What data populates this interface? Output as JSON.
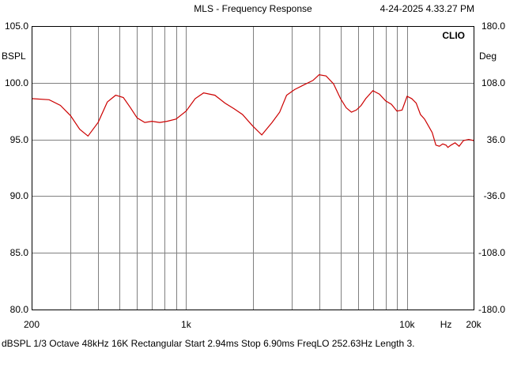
{
  "header": {
    "title": "MLS - Frequency Response",
    "timestamp": "4-24-2025 4.33.27 PM"
  },
  "footer": {
    "settings": "dBSPL   1/3 Octave   48kHz   16K   Rectangular   Start 2.94ms   Stop 6.90ms   FreqLO 252.63Hz   Length 3."
  },
  "chart_data": {
    "type": "line",
    "title": "MLS - Frequency Response",
    "watermark": "CLIO",
    "xlabel": "Hz",
    "x_scale": "log",
    "xlim": [
      200,
      20000
    ],
    "ylabel": "BSPL",
    "ylim": [
      80,
      105
    ],
    "y2label": "Deg",
    "y2lim": [
      -180,
      180
    ],
    "grid": true,
    "line_color": "#cc0000",
    "x_tick_labels": [
      {
        "value": 200,
        "label": "200"
      },
      {
        "value": 1000,
        "label": "1k"
      },
      {
        "value": 10000,
        "label": "10k"
      },
      {
        "value": 15000,
        "label": "Hz"
      },
      {
        "value": 20000,
        "label": "20k"
      }
    ],
    "y_tick_labels": [
      {
        "value": 105,
        "label": "105.0"
      },
      {
        "value": 100,
        "label": "100.0"
      },
      {
        "value": 95,
        "label": "95.0"
      },
      {
        "value": 90,
        "label": "90.0"
      },
      {
        "value": 85,
        "label": "85.0"
      },
      {
        "value": 80,
        "label": "80.0"
      }
    ],
    "y2_tick_labels": [
      {
        "value": 180,
        "label": "180.0"
      },
      {
        "value": 108,
        "label": "108.0"
      },
      {
        "value": 36,
        "label": "36.0"
      },
      {
        "value": -36,
        "label": "-36.0"
      },
      {
        "value": -108,
        "label": "-108.0"
      },
      {
        "value": -180,
        "label": "-180.0"
      }
    ],
    "series": [
      {
        "x": [
          200,
          240,
          270,
          300,
          330,
          360,
          400,
          440,
          480,
          520,
          560,
          600,
          650,
          700,
          760,
          820,
          900,
          1000,
          1100,
          1200,
          1350,
          1500,
          1650,
          1800,
          2000,
          2200,
          2450,
          2650,
          2850,
          3100,
          3400,
          3750,
          4000,
          4300,
          4650,
          5000,
          5300,
          5600,
          5900,
          6200,
          6500,
          7000,
          7500,
          8000,
          8500,
          9000,
          9500,
          10000,
          10500,
          11000,
          11500,
          12000,
          12500,
          13000,
          13500,
          14000,
          14500,
          15000,
          15300,
          15800,
          16500,
          17200,
          18000,
          19000,
          20000
        ],
        "y": [
          98.6,
          98.5,
          98.0,
          97.1,
          95.9,
          95.3,
          96.5,
          98.3,
          98.9,
          98.7,
          97.8,
          96.9,
          96.5,
          96.6,
          96.5,
          96.6,
          96.8,
          97.5,
          98.6,
          99.1,
          98.9,
          98.2,
          97.7,
          97.2,
          96.2,
          95.4,
          96.5,
          97.4,
          98.9,
          99.4,
          99.8,
          100.2,
          100.7,
          100.6,
          99.9,
          98.6,
          97.8,
          97.4,
          97.6,
          98.0,
          98.6,
          99.3,
          99.0,
          98.4,
          98.1,
          97.5,
          97.6,
          98.8,
          98.6,
          98.2,
          97.2,
          96.8,
          96.2,
          95.6,
          94.5,
          94.4,
          94.6,
          94.5,
          94.3,
          94.5,
          94.7,
          94.4,
          94.9,
          95.0,
          94.9
        ]
      }
    ]
  }
}
